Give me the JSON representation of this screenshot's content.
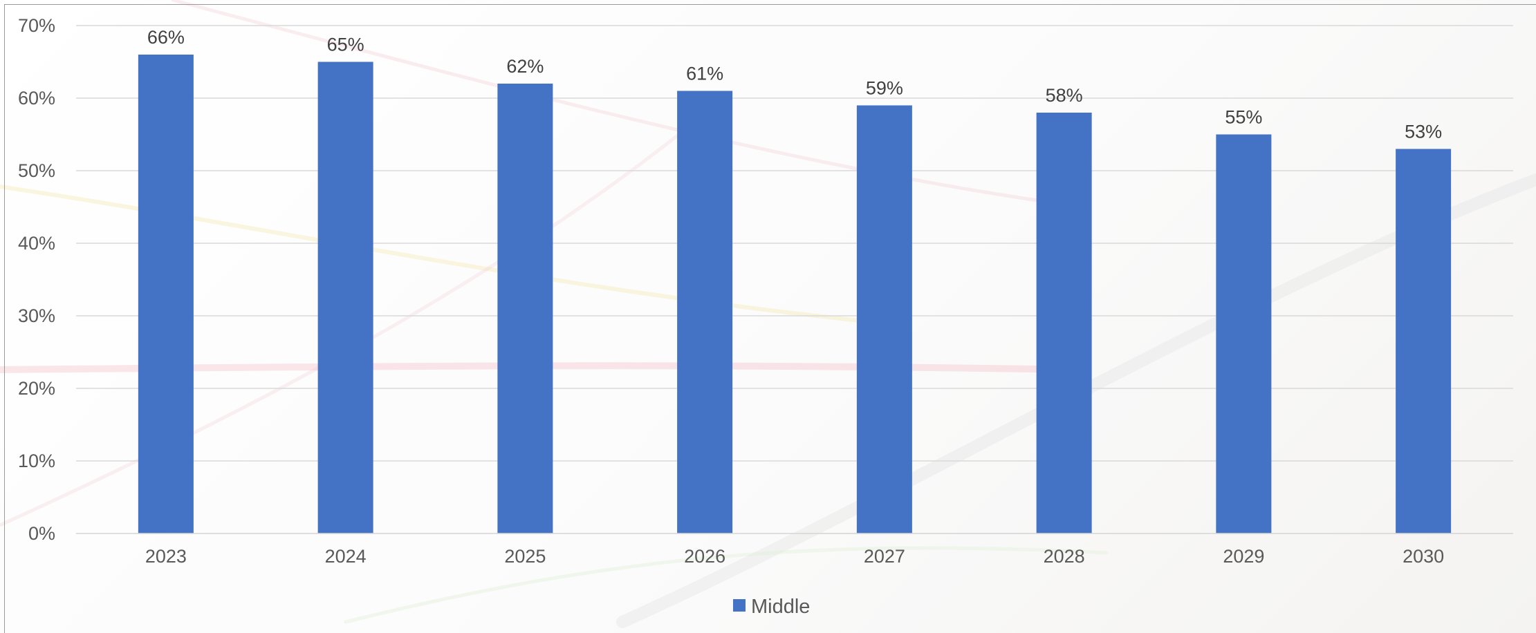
{
  "chart_data": {
    "type": "bar",
    "title": "",
    "xlabel": "",
    "ylabel": "",
    "categories": [
      "2023",
      "2024",
      "2025",
      "2026",
      "2027",
      "2028",
      "2029",
      "2030"
    ],
    "series": [
      {
        "name": "Middle",
        "values": [
          66,
          65,
          62,
          61,
          59,
          58,
          55,
          53
        ],
        "data_labels": [
          "66%",
          "65%",
          "62%",
          "61%",
          "59%",
          "58%",
          "55%",
          "53%"
        ],
        "color": "#4472c4"
      }
    ],
    "ylim": [
      0,
      70
    ],
    "y_ticks": [
      0,
      10,
      20,
      30,
      40,
      50,
      60,
      70
    ],
    "y_tick_labels": [
      "0%",
      "10%",
      "20%",
      "30%",
      "40%",
      "50%",
      "60%",
      "70%"
    ],
    "grid": true,
    "gridline_color": "#d9d9d9",
    "legend": {
      "position": "bottom",
      "entries": [
        "Middle"
      ]
    }
  }
}
